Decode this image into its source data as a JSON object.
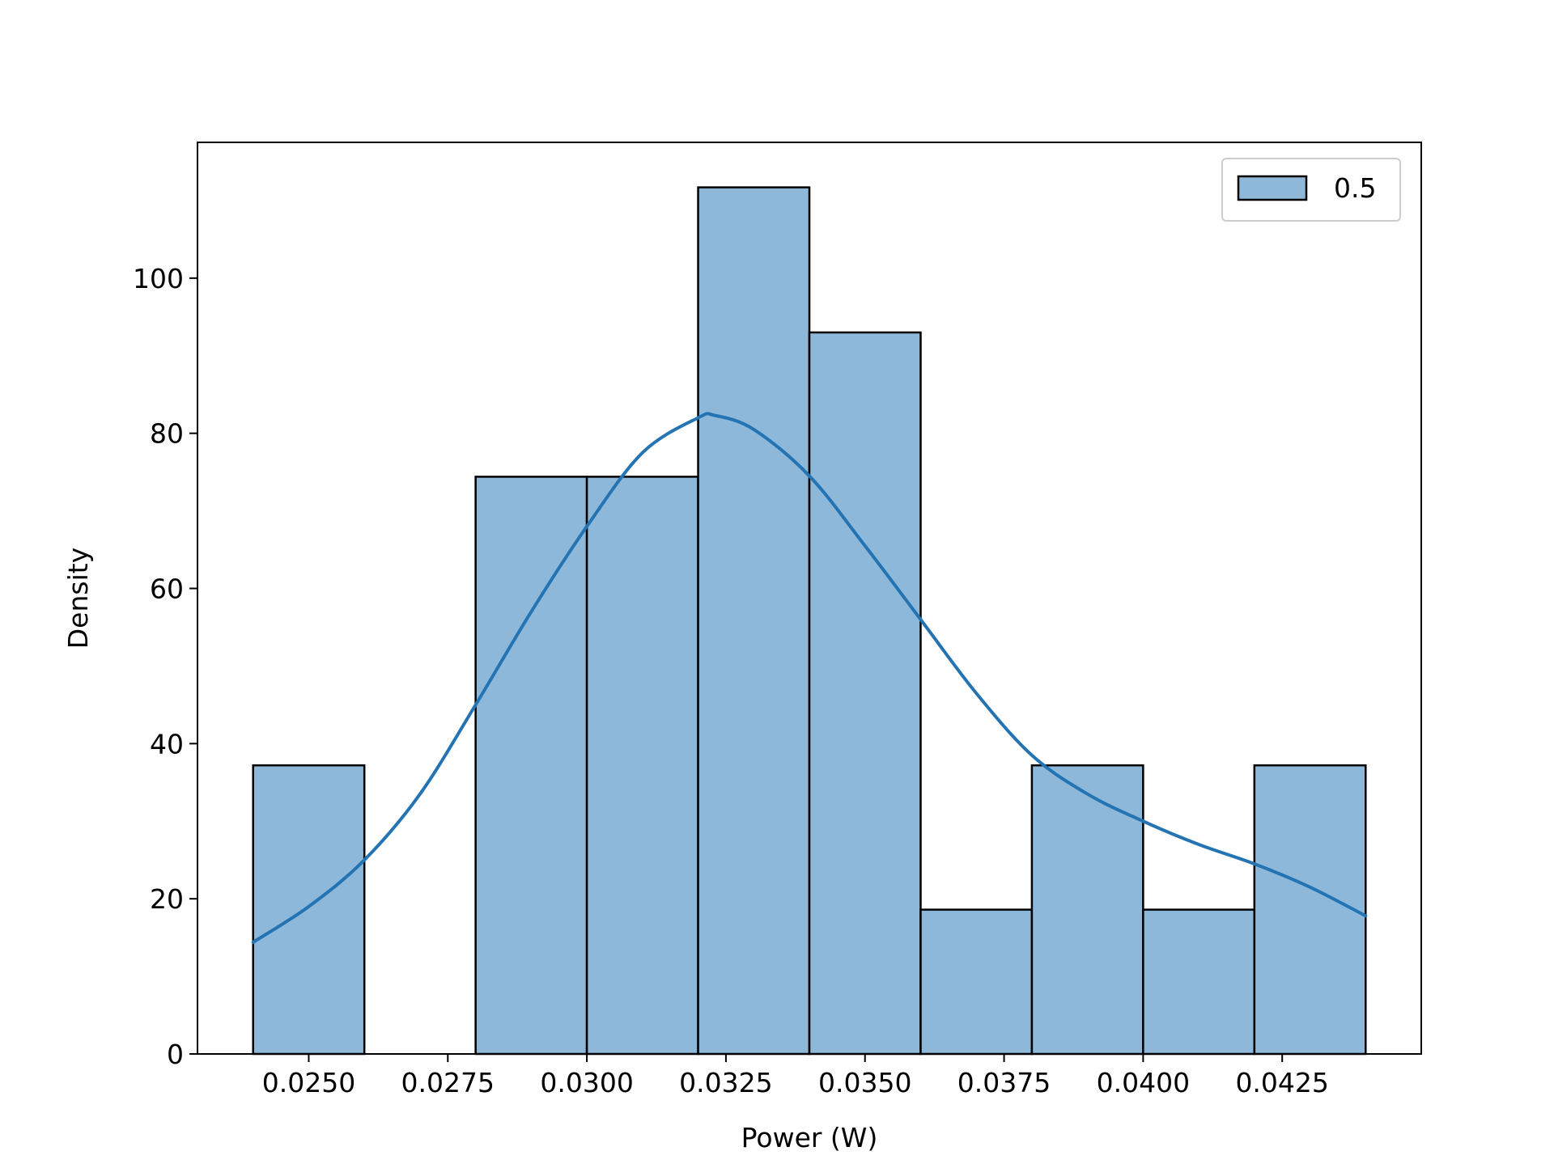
{
  "colors": {
    "bar_fill": "#8db8d9",
    "bar_edge": "#000000",
    "kde_line": "#2474b4",
    "axes": "#000000",
    "legend_frame": "#cccccc"
  },
  "chart_data": {
    "type": "bar",
    "subtype": "histogram-with-kde",
    "title": "",
    "xlabel": "Power (W)",
    "ylabel": "Density",
    "xlim": [
      0.023,
      0.045
    ],
    "ylim": [
      0,
      117.5
    ],
    "xticks": [
      {
        "value": 0.025,
        "label": "0.0250"
      },
      {
        "value": 0.0275,
        "label": "0.0275"
      },
      {
        "value": 0.03,
        "label": "0.0300"
      },
      {
        "value": 0.0325,
        "label": "0.0325"
      },
      {
        "value": 0.035,
        "label": "0.0350"
      },
      {
        "value": 0.0375,
        "label": "0.0375"
      },
      {
        "value": 0.04,
        "label": "0.0400"
      },
      {
        "value": 0.0425,
        "label": "0.0425"
      }
    ],
    "yticks": [
      {
        "value": 0,
        "label": "0"
      },
      {
        "value": 20,
        "label": "20"
      },
      {
        "value": 40,
        "label": "40"
      },
      {
        "value": 60,
        "label": "60"
      },
      {
        "value": 80,
        "label": "80"
      },
      {
        "value": 100,
        "label": "100"
      }
    ],
    "bins": [
      {
        "x0": 0.024,
        "x1": 0.026,
        "density": 37.2
      },
      {
        "x0": 0.026,
        "x1": 0.028,
        "density": 0
      },
      {
        "x0": 0.028,
        "x1": 0.03,
        "density": 74.4
      },
      {
        "x0": 0.03,
        "x1": 0.032,
        "density": 74.4
      },
      {
        "x0": 0.032,
        "x1": 0.034,
        "density": 111.7
      },
      {
        "x0": 0.034,
        "x1": 0.036,
        "density": 93.0
      },
      {
        "x0": 0.036,
        "x1": 0.038,
        "density": 18.6
      },
      {
        "x0": 0.038,
        "x1": 0.04,
        "density": 37.2
      },
      {
        "x0": 0.04,
        "x1": 0.042,
        "density": 18.6
      },
      {
        "x0": 0.042,
        "x1": 0.044,
        "density": 37.2
      }
    ],
    "kde": {
      "x": [
        0.024,
        0.025,
        0.026,
        0.027,
        0.028,
        0.029,
        0.03,
        0.031,
        0.032,
        0.0323,
        0.033,
        0.034,
        0.035,
        0.036,
        0.037,
        0.038,
        0.039,
        0.04,
        0.041,
        0.042,
        0.043,
        0.044
      ],
      "y": [
        14.4,
        19.0,
        25.0,
        33.5,
        45.0,
        57.0,
        68.0,
        77.5,
        82.0,
        82.3,
        80.5,
        74.5,
        65.5,
        56.0,
        46.5,
        38.5,
        33.5,
        30.0,
        27.0,
        24.5,
        21.5,
        17.8
      ]
    },
    "legend": {
      "position": "upper right",
      "entries": [
        {
          "label": "0.5"
        }
      ]
    },
    "grid": false
  }
}
